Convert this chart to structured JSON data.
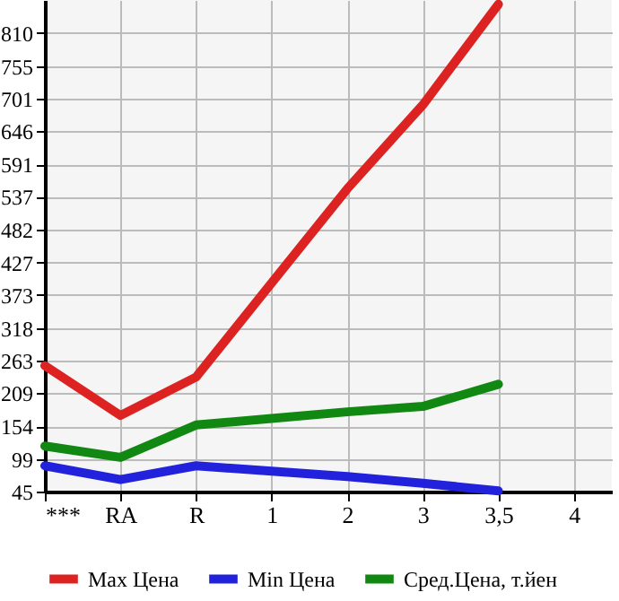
{
  "chart_data": {
    "type": "line",
    "categories": [
      "***",
      "RA",
      "R",
      "1",
      "2",
      "3",
      "3,5",
      "4"
    ],
    "series": [
      {
        "name": "Max Цена",
        "color": "#dd2222",
        "values": [
          255,
          172,
          236,
          393,
          550,
          690,
          858,
          null
        ]
      },
      {
        "name": "Min Цена",
        "color": "#2222dd",
        "values": [
          88,
          65,
          88,
          79,
          70,
          59,
          46,
          null
        ]
      },
      {
        "name": "Сред.Цена, т.йен",
        "color": "#118811",
        "values": [
          121,
          102,
          156,
          167,
          178,
          187,
          224,
          null
        ]
      }
    ],
    "ylim": [
      45,
      865
    ],
    "yticks": [
      45,
      99,
      154,
      209,
      263,
      318,
      373,
      427,
      482,
      537,
      591,
      646,
      701,
      755,
      810
    ],
    "grid": true,
    "legend": "bottom",
    "marker": "none",
    "line_style": "solid"
  }
}
